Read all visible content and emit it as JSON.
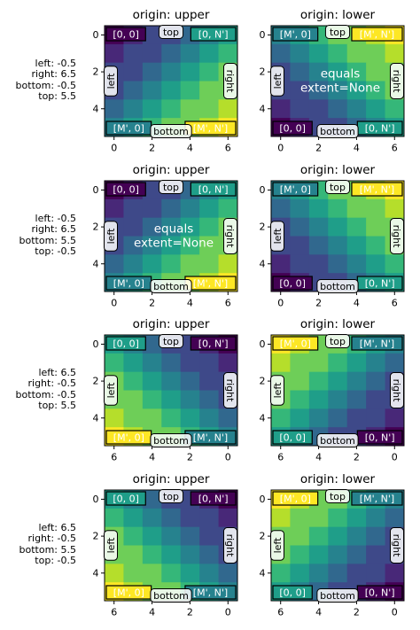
{
  "colors": {
    "viridis": [
      "#440154",
      "#482878",
      "#3e4989",
      "#31688e",
      "#26828e",
      "#1f9e89",
      "#35b779",
      "#6ece58",
      "#b5de2b",
      "#fde725"
    ],
    "corner_box_border": "#000000",
    "edge_box_fill": "#ffffff",
    "edge_box_border": "#000000"
  },
  "chart_data": [
    {
      "type": "heatmap",
      "title": "origin: upper",
      "extent_label": [
        "left: -0.5",
        "right: 6.5",
        "bottom: -0.5",
        "top: 5.5"
      ],
      "x_ticks": [
        "0",
        "2",
        "4",
        "6"
      ],
      "y_ticks": [
        "0",
        "2",
        "4"
      ],
      "corners": {
        "tl": "[0, 0]",
        "tr": "[0, N']",
        "bl": "[M', 0]",
        "br": "[M', N']"
      },
      "edges": {
        "top": "top",
        "bottom": "bottom",
        "left": "left",
        "right": "right"
      },
      "center_text": []
    },
    {
      "type": "heatmap",
      "title": "origin: lower",
      "extent_label": [],
      "x_ticks": [
        "0",
        "2",
        "4",
        "6"
      ],
      "y_ticks": [
        "0",
        "2",
        "4"
      ],
      "corners": {
        "tl": "[M', 0]",
        "tr": "[M', N']",
        "bl": "[0, 0]",
        "br": "[0, N']"
      },
      "edges": {
        "top": "top",
        "bottom": "bottom",
        "left": "left",
        "right": "right"
      },
      "center_text": [
        "equals",
        "extent=None"
      ]
    },
    {
      "type": "heatmap",
      "title": "origin: upper",
      "extent_label": [
        "left: -0.5",
        "right: 6.5",
        "bottom: 5.5",
        "top: -0.5"
      ],
      "x_ticks": [
        "0",
        "2",
        "4",
        "6"
      ],
      "y_ticks": [
        "0",
        "2",
        "4"
      ],
      "corners": {
        "tl": "[0, 0]",
        "tr": "[0, N']",
        "bl": "[M', 0]",
        "br": "[M', N']"
      },
      "edges": {
        "top": "top",
        "bottom": "bottom",
        "left": "left",
        "right": "right"
      },
      "center_text": [
        "equals",
        "extent=None"
      ]
    },
    {
      "type": "heatmap",
      "title": "origin: lower",
      "extent_label": [],
      "x_ticks": [
        "0",
        "2",
        "4",
        "6"
      ],
      "y_ticks": [
        "0",
        "2",
        "4"
      ],
      "corners": {
        "tl": "[M', 0]",
        "tr": "[M', N']",
        "bl": "[0, 0]",
        "br": "[0, N']"
      },
      "edges": {
        "top": "top",
        "bottom": "bottom",
        "left": "left",
        "right": "right"
      },
      "center_text": []
    },
    {
      "type": "heatmap",
      "title": "origin: upper",
      "extent_label": [
        "left: 6.5",
        "right: -0.5",
        "bottom: -0.5",
        "top: 5.5"
      ],
      "x_ticks": [
        "6",
        "4",
        "2",
        "0"
      ],
      "y_ticks": [
        "0",
        "2",
        "4"
      ],
      "corners": {
        "tl": "[0, 0]",
        "tr": "[0, N']",
        "bl": "[M', 0]",
        "br": "[M', N']"
      },
      "edges": {
        "top": "top",
        "bottom": "bottom",
        "left": "left",
        "right": "right"
      },
      "center_text": []
    },
    {
      "type": "heatmap",
      "title": "origin: lower",
      "extent_label": [],
      "x_ticks": [
        "6",
        "4",
        "2",
        "0"
      ],
      "y_ticks": [
        "0",
        "2",
        "4"
      ],
      "corners": {
        "tl": "[M', 0]",
        "tr": "[M', N']",
        "bl": "[0, 0]",
        "br": "[0, N']"
      },
      "edges": {
        "top": "top",
        "bottom": "bottom",
        "left": "left",
        "right": "right"
      },
      "center_text": []
    },
    {
      "type": "heatmap",
      "title": "origin: upper",
      "extent_label": [
        "left: 6.5",
        "right: -0.5",
        "bottom: 5.5",
        "top: -0.5"
      ],
      "x_ticks": [
        "6",
        "4",
        "2",
        "0"
      ],
      "y_ticks": [
        "0",
        "2",
        "4"
      ],
      "corners": {
        "tl": "[0, 0]",
        "tr": "[0, N']",
        "bl": "[M', 0]",
        "br": "[M', N']"
      },
      "edges": {
        "top": "top",
        "bottom": "bottom",
        "left": "left",
        "right": "right"
      },
      "center_text": []
    },
    {
      "type": "heatmap",
      "title": "origin: lower",
      "extent_label": [],
      "x_ticks": [
        "6",
        "4",
        "2",
        "0"
      ],
      "y_ticks": [
        "0",
        "2",
        "4"
      ],
      "corners": {
        "tl": "[M', 0]",
        "tr": "[M', N']",
        "bl": "[0, 0]",
        "br": "[0, N']"
      },
      "edges": {
        "top": "top",
        "bottom": "bottom",
        "left": "left",
        "right": "right"
      },
      "center_text": []
    }
  ]
}
